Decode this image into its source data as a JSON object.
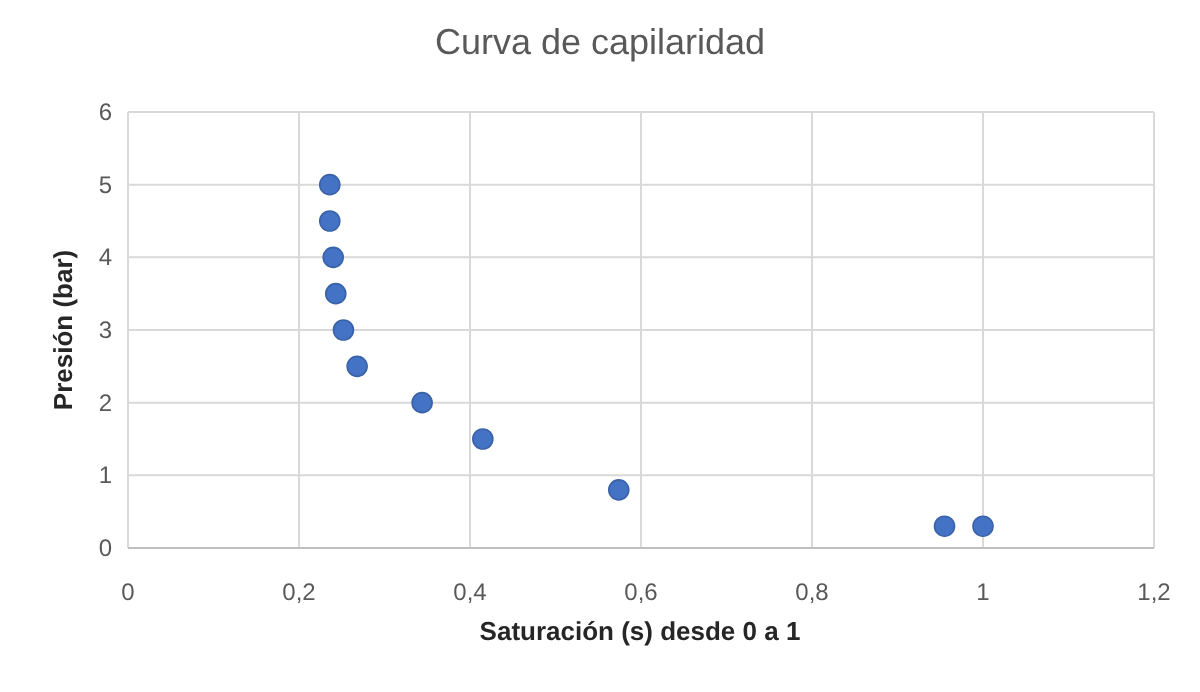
{
  "chart_data": {
    "type": "scatter",
    "title": "Curva de capilaridad",
    "xlabel": "Saturación (s) desde 0 a 1",
    "ylabel": "Presión (bar)",
    "x": [
      0.236,
      0.236,
      0.24,
      0.243,
      0.252,
      0.268,
      0.344,
      0.415,
      0.574,
      0.955,
      1.0
    ],
    "values": [
      5,
      4.5,
      4,
      3.5,
      3,
      2.5,
      2,
      1.5,
      0.8,
      0.3,
      0.3
    ],
    "color": "#4472c4",
    "marker": "circle",
    "xlim": [
      0,
      1.2
    ],
    "xticks": [
      0,
      {
        "value": 0.2,
        "label": "0,2"
      },
      {
        "value": 0.4,
        "label": "0,4"
      },
      {
        "value": 0.6,
        "label": "0,6"
      },
      {
        "value": 0.8,
        "label": "0,8"
      },
      1,
      {
        "value": 1.2,
        "label": "1,2"
      }
    ],
    "ylim": [
      0,
      6
    ],
    "yticks": [
      0,
      1,
      2,
      3,
      4,
      5,
      6
    ],
    "grid": true
  }
}
